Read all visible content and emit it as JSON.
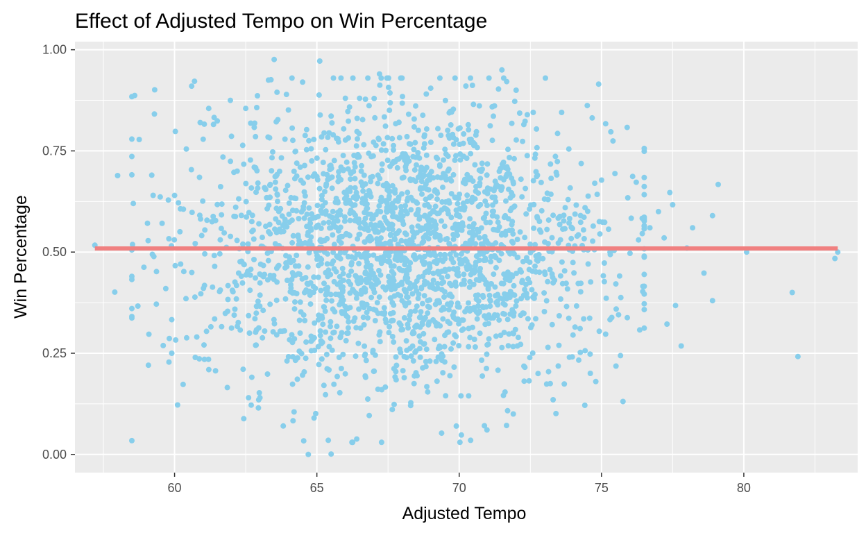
{
  "chart_data": {
    "type": "scatter",
    "title": "Effect of Adjusted Tempo on Win Percentage",
    "xlabel": "Adjusted Tempo",
    "ylabel": "Win Percentage",
    "xlim": [
      56.5,
      84.0
    ],
    "ylim": [
      -0.045,
      1.02
    ],
    "x_ticks": [
      60,
      65,
      70,
      75,
      80
    ],
    "x_tick_labels": [
      "60",
      "65",
      "70",
      "75",
      "80"
    ],
    "y_ticks": [
      0,
      0.25,
      0.5,
      0.75,
      1.0
    ],
    "y_tick_labels": [
      "0.00",
      "0.25",
      "0.50",
      "0.75",
      "1.00"
    ],
    "grid": true,
    "panel_background": "#ebebeb",
    "grid_color": "#ffffff",
    "point_color": "#87ceeb",
    "fit_line_color": "#f08080",
    "fit_line": {
      "x": [
        57.2,
        83.3
      ],
      "y": [
        0.509,
        0.509
      ]
    },
    "points": [
      [
        57.2,
        0.517
      ],
      [
        57.9,
        0.401
      ],
      [
        58.0,
        0.689
      ],
      [
        58.5,
        0.884
      ],
      [
        58.6,
        0.887
      ],
      [
        59.1,
        0.297
      ],
      [
        59.2,
        0.69
      ],
      [
        59.3,
        0.901
      ],
      [
        59.6,
        0.269
      ],
      [
        59.8,
        0.533
      ],
      [
        59.9,
        0.25
      ],
      [
        59.9,
        0.333
      ],
      [
        60.0,
        0.64
      ],
      [
        60.3,
        0.173
      ],
      [
        60.4,
        0.385
      ],
      [
        60.6,
        0.91
      ],
      [
        60.7,
        0.922
      ],
      [
        60.9,
        0.82
      ],
      [
        61.2,
        0.855
      ],
      [
        61.5,
        0.824
      ],
      [
        63.5,
        0.976
      ],
      [
        63.3,
        0.925
      ],
      [
        63.6,
        0.895
      ],
      [
        65.1,
        0.972
      ],
      [
        62.0,
        0.786
      ],
      [
        62.5,
        0.855
      ],
      [
        64.5,
        0.92
      ],
      [
        66.5,
        0.88
      ],
      [
        67.2,
        0.94
      ],
      [
        69.0,
        0.905
      ],
      [
        71.5,
        0.95
      ],
      [
        72.0,
        0.9
      ],
      [
        74.9,
        0.915
      ],
      [
        75.9,
        0.808
      ],
      [
        74.5,
        0.862
      ],
      [
        73.6,
        0.845
      ],
      [
        72.6,
        0.845
      ],
      [
        70.5,
        0.865
      ],
      [
        68.0,
        0.868
      ],
      [
        66.0,
        0.88
      ],
      [
        65.5,
        0.836
      ],
      [
        64.0,
        0.851
      ],
      [
        62.8,
        0.808
      ],
      [
        61.7,
        0.735
      ],
      [
        62.2,
        0.7
      ],
      [
        76.3,
        0.53
      ],
      [
        76.7,
        0.56
      ],
      [
        77.2,
        0.535
      ],
      [
        77.4,
        0.647
      ],
      [
        77.5,
        0.617
      ],
      [
        77.0,
        0.6
      ],
      [
        78.0,
        0.51
      ],
      [
        78.2,
        0.56
      ],
      [
        78.9,
        0.59
      ],
      [
        79.1,
        0.667
      ],
      [
        78.6,
        0.448
      ],
      [
        78.9,
        0.38
      ],
      [
        77.3,
        0.322
      ],
      [
        77.6,
        0.368
      ],
      [
        77.8,
        0.268
      ],
      [
        75.6,
        0.345
      ],
      [
        75.3,
        0.333
      ],
      [
        74.8,
        0.18
      ],
      [
        73.4,
        0.101
      ],
      [
        73.3,
        0.135
      ],
      [
        71.7,
        0.108
      ],
      [
        71.9,
        0.1
      ],
      [
        70.4,
        0.035
      ],
      [
        69.9,
        0.07
      ],
      [
        66.4,
        0.038
      ],
      [
        65.5,
        0.001
      ],
      [
        64.7,
        0.0
      ],
      [
        64.9,
        0.09
      ],
      [
        65.4,
        0.035
      ],
      [
        64.2,
        0.105
      ],
      [
        74.2,
        0.233
      ],
      [
        74.6,
        0.248
      ],
      [
        75.1,
        0.427
      ],
      [
        75.1,
        0.473
      ],
      [
        75.3,
        0.5
      ],
      [
        76.0,
        0.497
      ],
      [
        74.0,
        0.295
      ],
      [
        73.2,
        0.175
      ],
      [
        62.6,
        0.14
      ],
      [
        63.0,
        0.14
      ],
      [
        81.7,
        0.4
      ],
      [
        81.9,
        0.242
      ],
      [
        83.2,
        0.484
      ],
      [
        83.3,
        0.5
      ],
      [
        80.1,
        0.5
      ]
    ],
    "point_cloud": {
      "n": 2200,
      "x_mean": 68.0,
      "x_sd": 3.6,
      "y_mean": 0.51,
      "y_sd": 0.17
    }
  }
}
